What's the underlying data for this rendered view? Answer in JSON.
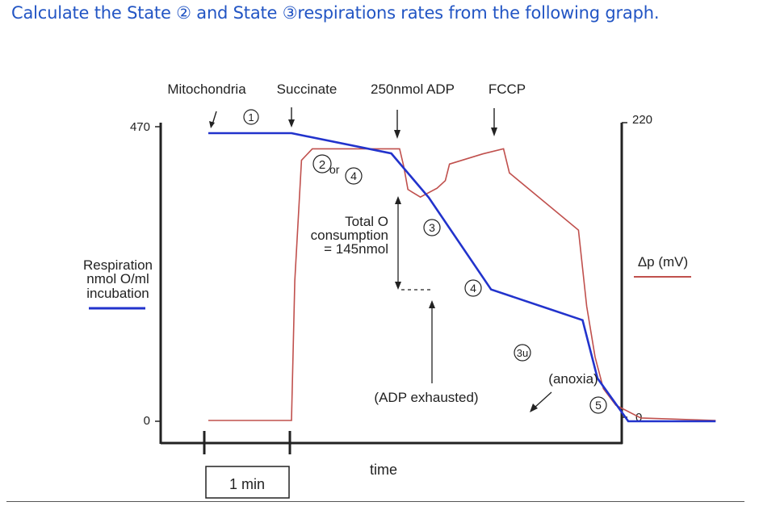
{
  "question": {
    "prefix": "Calculate the State ",
    "state_a": "②",
    "middle": " and State ",
    "state_b": "③",
    "suffix": "respirations rates from the following graph."
  },
  "chart_data": {
    "type": "line",
    "x_label": "time",
    "time_scale_label": "1 min",
    "left_axis": {
      "label": [
        "Respiration",
        "nmol O/ml",
        "incubation"
      ],
      "ticks": [
        {
          "value": 470,
          "label": "470"
        },
        {
          "value": 0,
          "label": "0"
        }
      ],
      "range": [
        0,
        470
      ],
      "legend_color": "#2233cc"
    },
    "right_axis": {
      "label": "Δp (mV)",
      "ticks": [
        {
          "value": 220,
          "label": "220"
        },
        {
          "value": 0,
          "label": "0"
        }
      ],
      "range": [
        0,
        220
      ],
      "legend_color": "#c0504d"
    },
    "series": [
      {
        "axis": "left",
        "color": "#2233cc",
        "x": [
          0.0,
          1.0,
          2.2,
          2.65,
          3.4,
          4.5,
          4.68,
          5.05,
          6.1
        ],
        "y": [
          470,
          470,
          437,
          365,
          215,
          165,
          70,
          0,
          0
        ]
      },
      {
        "axis": "right",
        "color": "#c0504d",
        "x": [
          0.0,
          1.0,
          1.04,
          1.12,
          1.25,
          2.0,
          2.3,
          2.35,
          2.4,
          2.55,
          2.75,
          2.85,
          2.9,
          3.3,
          3.55,
          3.62,
          4.45,
          4.5,
          4.55,
          4.65,
          4.75,
          4.9,
          5.2,
          6.1
        ],
        "y": [
          0,
          0,
          110,
          205,
          214,
          214,
          214,
          200,
          182,
          176,
          183,
          189,
          202,
          210,
          214,
          195,
          150,
          120,
          90,
          50,
          25,
          12,
          2,
          0
        ]
      }
    ],
    "events": [
      {
        "label": "Mitochondria",
        "time": 0.0
      },
      {
        "label": "Succinate",
        "time": 1.0
      },
      {
        "label": "250nmol ADP",
        "time": 2.35
      },
      {
        "label": "FCCP",
        "time": 3.6
      }
    ],
    "state_markers": [
      "1",
      "2",
      "4",
      "3",
      "4",
      "3u",
      "5"
    ],
    "annotations": {
      "or": "or",
      "total_o": [
        "Total O",
        "consumption",
        "= 145nmol"
      ],
      "adp_exhausted": "(ADP exhausted)",
      "anoxia": "(anoxia)"
    }
  }
}
